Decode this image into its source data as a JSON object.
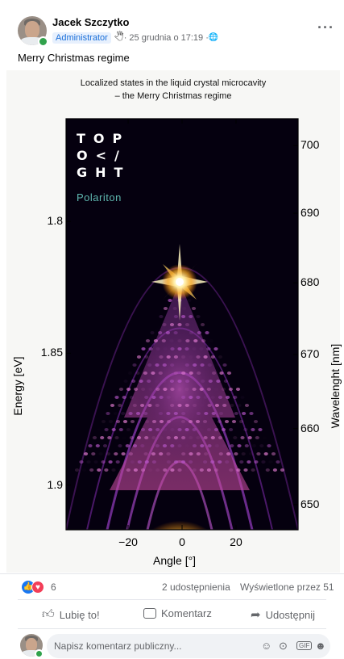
{
  "post": {
    "author": "Jacek Szczytko",
    "role_badge": "Administrator",
    "badge_icon": "🖑",
    "date": " · 25 grudnia o 17:19 · ",
    "globe_icon": "🌐",
    "more_icon": "···",
    "message": "Merry Christmas regime"
  },
  "figure": {
    "title_line1": "Localized states in the liquid crystal microcavity",
    "title_line2": "– the Merry Christmas regime",
    "logo_rows": [
      [
        "T",
        "O",
        "P"
      ],
      [
        "O",
        "<",
        "/"
      ],
      [
        "G",
        "H",
        "T"
      ]
    ],
    "logo_name": "Polariton",
    "colors": {
      "background": "#05000f",
      "emission": "#ff9a1a",
      "modes": "#b04cc2"
    }
  },
  "chart_data": {
    "type": "heatmap",
    "xlabel": "Angle [°]",
    "ylabel": "Energy [eV]",
    "y2label": "Wavelenght [nm]",
    "x_ticks": [
      -20,
      0,
      20
    ],
    "y_ticks": [
      "1.8",
      "1.85",
      "1.9"
    ],
    "y2_ticks": [
      700,
      690,
      680,
      670,
      660,
      650
    ],
    "xlim": [
      -43,
      43
    ],
    "ylim_energy": [
      1.761,
      1.917
    ],
    "colormap": "inferno-like"
  },
  "footer": {
    "reaction_count": "6",
    "shares": "2 udostępnienia",
    "views": "Wyświetlone przez 51",
    "like_label": "Lubię to!",
    "comment_label": "Komentarz",
    "share_label": "Udostępnij",
    "comment_placeholder": "Napisz komentarz publiczny..."
  }
}
